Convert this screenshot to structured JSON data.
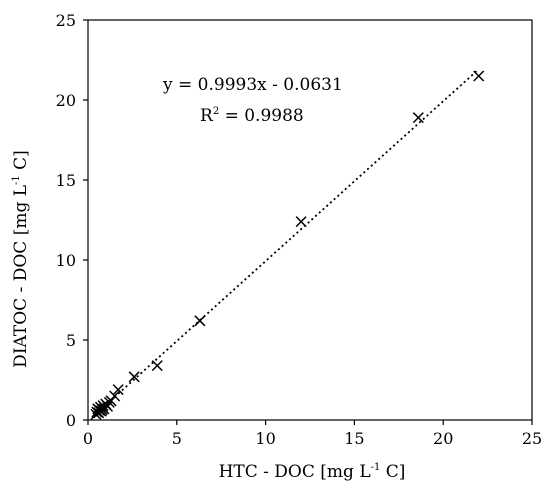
{
  "chart_data": {
    "type": "scatter",
    "title": "",
    "xlabel": {
      "main": "HTC - DOC [mg L",
      "sup": "-1",
      "tail": " C]"
    },
    "ylabel": {
      "main": "DIATOC - DOC [mg L",
      "sup": "-1",
      "tail": " C]"
    },
    "xlim": [
      0,
      25
    ],
    "ylim": [
      0,
      25
    ],
    "xticks": [
      "0",
      "5",
      "10",
      "15",
      "20",
      "25"
    ],
    "yticks": [
      "0",
      "5",
      "10",
      "15",
      "20",
      "25"
    ],
    "grid": false,
    "marker": "x",
    "colors": {
      "axis": "#000000",
      "marker": "#000000",
      "trendline": "#000000"
    },
    "trendline": {
      "slope": 0.9993,
      "intercept": -0.0631,
      "equation": "y = 0.9993x - 0.0631",
      "r2_prefix": "R",
      "r2_sup": "2",
      "r2_value": " = 0.9988",
      "style": "dotted"
    },
    "points": [
      {
        "x": 0.45,
        "y": 0.35
      },
      {
        "x": 0.5,
        "y": 0.5
      },
      {
        "x": 0.55,
        "y": 0.7
      },
      {
        "x": 0.6,
        "y": 0.45
      },
      {
        "x": 0.65,
        "y": 0.6
      },
      {
        "x": 0.7,
        "y": 0.8
      },
      {
        "x": 0.75,
        "y": 0.55
      },
      {
        "x": 0.8,
        "y": 0.65
      },
      {
        "x": 0.85,
        "y": 0.9
      },
      {
        "x": 0.9,
        "y": 0.7
      },
      {
        "x": 1.0,
        "y": 1.0
      },
      {
        "x": 1.1,
        "y": 0.85
      },
      {
        "x": 1.2,
        "y": 1.1
      },
      {
        "x": 1.3,
        "y": 1.2
      },
      {
        "x": 1.5,
        "y": 1.5
      },
      {
        "x": 1.7,
        "y": 1.9
      },
      {
        "x": 2.6,
        "y": 2.7
      },
      {
        "x": 3.9,
        "y": 3.4
      },
      {
        "x": 6.3,
        "y": 6.2
      },
      {
        "x": 12.0,
        "y": 12.4
      },
      {
        "x": 18.6,
        "y": 18.9
      },
      {
        "x": 22.0,
        "y": 21.5
      }
    ]
  }
}
